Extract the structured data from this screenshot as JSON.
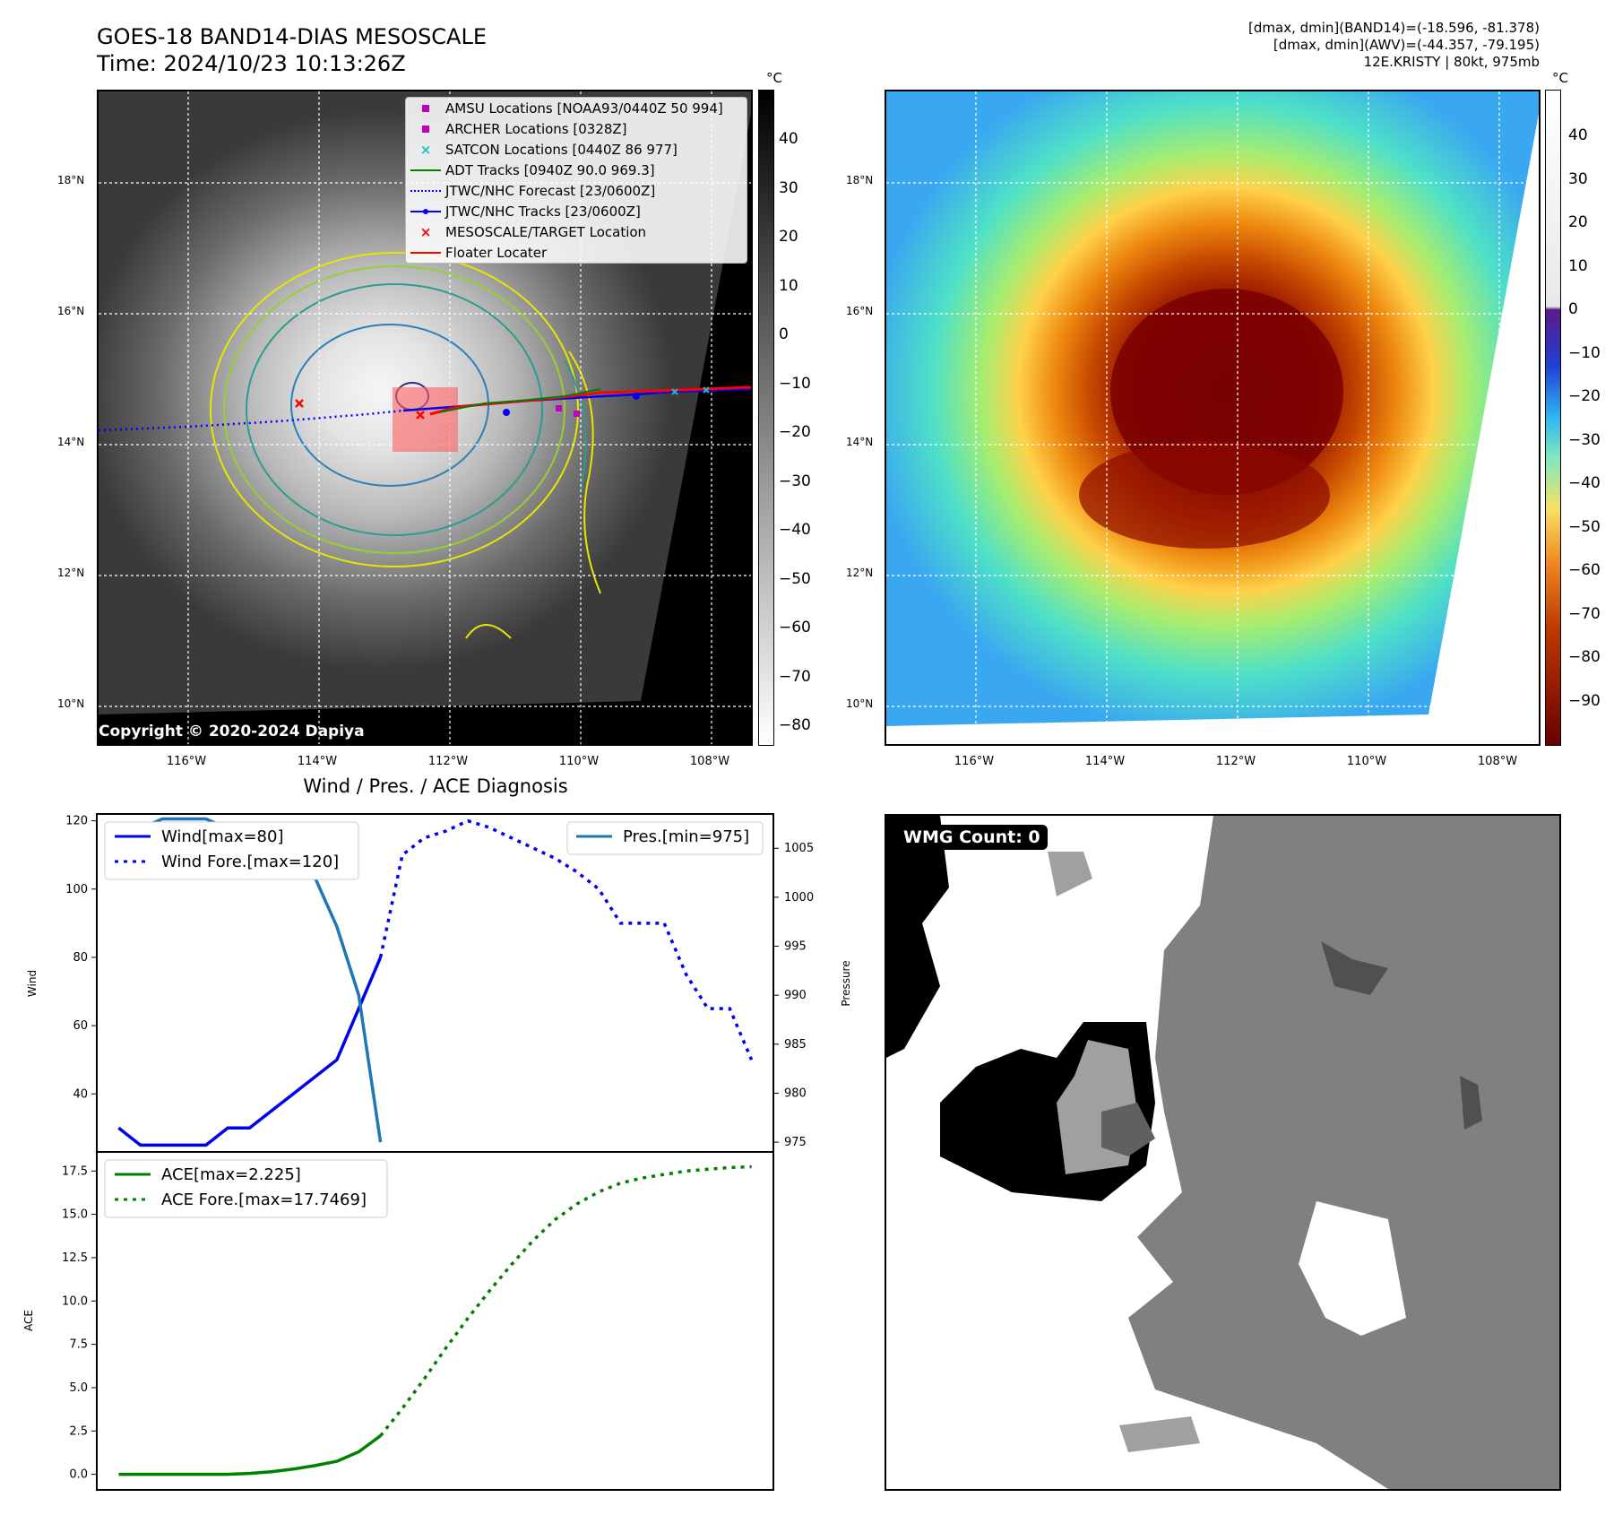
{
  "header": {
    "title_line1": "GOES-18 BAND14-DIAS MESOSCALE",
    "title_line2": "Time: 2024/10/23 10:13:26Z",
    "info_line1": "[dmax, dmin](BAND14)=(-18.596, -81.378)",
    "info_line2": "[dmax, dmin](AWV)=(-44.357, -79.195)",
    "info_line3": "12E.KRISTY | 80kt, 975mb"
  },
  "map_left": {
    "unit": "°C",
    "colorbar_ticks": [
      "40",
      "30",
      "20",
      "10",
      "0",
      "−10",
      "−20",
      "−30",
      "−40",
      "−50",
      "−60",
      "−70",
      "−80"
    ],
    "lat_labels": [
      "18°N",
      "16°N",
      "14°N",
      "12°N",
      "10°N"
    ],
    "lon_labels": [
      "116°W",
      "114°W",
      "112°W",
      "110°W",
      "108°W"
    ],
    "copyright": "Copyright © 2020-2024 Dapiya",
    "legend": [
      {
        "label": "AMSU Locations [NOAA93/0440Z 50 994]",
        "color": "#c000c0",
        "symbol": "square"
      },
      {
        "label": "ARCHER Locations [0328Z]",
        "color": "#c000c0",
        "symbol": "square"
      },
      {
        "label": "SATCON Locations [0440Z 86 977]",
        "color": "#17becf",
        "symbol": "x"
      },
      {
        "label": "ADT Tracks [0940Z 90.0 969.3]",
        "color": "#008000",
        "symbol": "line"
      },
      {
        "label": "JTWC/NHC Forecast [23/0600Z]",
        "color": "#0000ff",
        "symbol": "dotted"
      },
      {
        "label": "JTWC/NHC Tracks [23/0600Z]",
        "color": "#0000ff",
        "symbol": "line-dot"
      },
      {
        "label": "MESOSCALE/TARGET Location",
        "color": "#ff0000",
        "symbol": "x"
      },
      {
        "label": "Floater Locater",
        "color": "#ff0000",
        "symbol": "line"
      }
    ]
  },
  "map_right": {
    "unit": "°C",
    "colorbar_ticks": [
      "40",
      "30",
      "20",
      "10",
      "0",
      "−10",
      "−20",
      "−30",
      "−40",
      "−50",
      "−60",
      "−70",
      "−80",
      "−90"
    ],
    "lat_labels": [
      "18°N",
      "16°N",
      "14°N",
      "12°N",
      "10°N"
    ],
    "lon_labels": [
      "116°W",
      "114°W",
      "112°W",
      "110°W",
      "108°W"
    ]
  },
  "diag": {
    "title": "Wind / Pres. / ACE Diagnosis",
    "wind_ylabel": "Wind",
    "pres_ylabel": "Pressure",
    "ace_ylabel": "ACE",
    "legend_wind": "Wind[max=80]",
    "legend_wind_fore": "Wind Fore.[max=120]",
    "legend_pres": "Pres.[min=975]",
    "legend_ace": "ACE[max=2.225]",
    "legend_ace_fore": "ACE Fore.[max=17.7469]",
    "colors": {
      "wind": "#0000ee",
      "pres": "#1f77b4",
      "ace": "#008000"
    }
  },
  "wmg": {
    "label": "WMG Count: 0"
  },
  "chart_data": [
    {
      "type": "line",
      "title": "Wind / Pres. / ACE Diagnosis",
      "ylabel": "Wind",
      "ylim": [
        23,
        122
      ],
      "yticks": [
        40,
        60,
        80,
        100,
        120
      ],
      "xlim": [
        -1,
        30
      ],
      "series": [
        {
          "name": "Wind[max=80]",
          "style": "solid",
          "x": [
            0,
            1,
            2,
            3,
            4,
            5,
            6,
            7,
            8,
            9,
            10,
            11,
            12
          ],
          "values": [
            30,
            25,
            25,
            25,
            25,
            30,
            30,
            35,
            40,
            45,
            50,
            65,
            80
          ]
        },
        {
          "name": "Wind Fore.[max=120]",
          "style": "dotted",
          "x": [
            12,
            13,
            14,
            15,
            16,
            17,
            18,
            19,
            20,
            21,
            22,
            23,
            24,
            25,
            26,
            27,
            28,
            29
          ],
          "values": [
            80,
            110,
            115,
            117,
            120,
            118,
            115,
            112,
            109,
            105,
            100,
            90,
            90,
            90,
            75,
            65,
            65,
            50
          ]
        }
      ]
    },
    {
      "type": "line",
      "ylabel": "Pressure",
      "ylim": [
        974,
        1008.5
      ],
      "yticks": [
        975,
        980,
        985,
        990,
        995,
        1000,
        1005
      ],
      "xlim": [
        -1,
        30
      ],
      "series": [
        {
          "name": "Pres.[min=975]",
          "style": "solid",
          "x": [
            0,
            1,
            2,
            3,
            4,
            5,
            6,
            7,
            8,
            9,
            10,
            11,
            12
          ],
          "values": [
            1007,
            1007,
            1008,
            1008,
            1008,
            1007,
            1007,
            1006,
            1005,
            1002,
            997,
            990,
            975
          ]
        }
      ]
    },
    {
      "type": "line",
      "ylabel": "ACE",
      "ylim": [
        -0.9,
        18.6
      ],
      "yticks": [
        0.0,
        2.5,
        5.0,
        7.5,
        10.0,
        12.5,
        15.0,
        17.5
      ],
      "xlim": [
        -1,
        30
      ],
      "series": [
        {
          "name": "ACE[max=2.225]",
          "style": "solid",
          "x": [
            0,
            1,
            2,
            3,
            4,
            5,
            6,
            7,
            8,
            9,
            10,
            11,
            12
          ],
          "values": [
            0,
            0,
            0,
            0,
            0,
            0,
            0.05,
            0.15,
            0.3,
            0.5,
            0.75,
            1.3,
            2.225
          ]
        },
        {
          "name": "ACE Fore.[max=17.7469]",
          "style": "dotted",
          "x": [
            12,
            13,
            14,
            15,
            16,
            17,
            18,
            19,
            20,
            21,
            22,
            23,
            24,
            25,
            26,
            27,
            28,
            29
          ],
          "values": [
            2.225,
            3.8,
            5.5,
            7.3,
            9.0,
            10.6,
            12.1,
            13.5,
            14.7,
            15.6,
            16.3,
            16.8,
            17.1,
            17.3,
            17.5,
            17.6,
            17.7,
            17.7469
          ]
        }
      ]
    }
  ]
}
